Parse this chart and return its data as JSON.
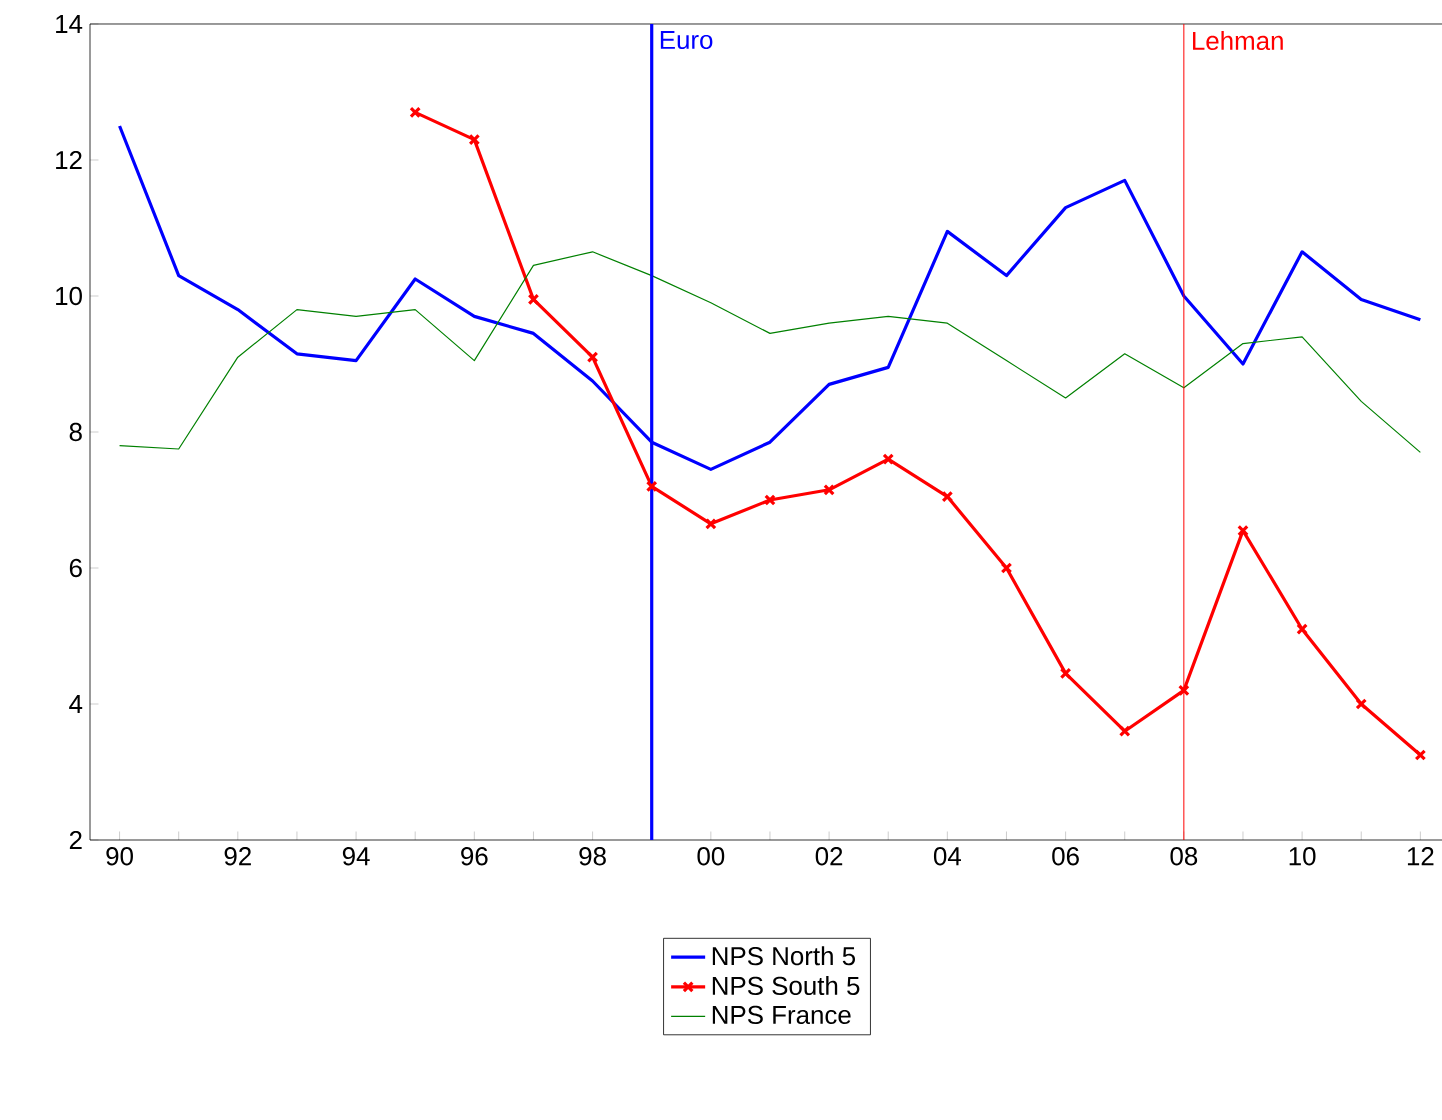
{
  "chart_data": {
    "type": "line",
    "x": [
      1990,
      1991,
      1992,
      1993,
      1994,
      1995,
      1996,
      1997,
      1998,
      1999,
      2000,
      2001,
      2002,
      2003,
      2004,
      2005,
      2006,
      2007,
      2008,
      2009,
      2010,
      2011,
      2012
    ],
    "series": [
      {
        "name": "NPS North 5",
        "color": "#0000ff",
        "marker": "none",
        "values": [
          12.5,
          10.3,
          9.8,
          9.15,
          9.05,
          10.25,
          9.7,
          9.45,
          8.75,
          7.85,
          7.45,
          7.85,
          8.7,
          8.95,
          10.95,
          10.3,
          11.3,
          11.7,
          10.0,
          9.0,
          10.65,
          9.95,
          9.65
        ]
      },
      {
        "name": "NPS South 5",
        "color": "#ff0000",
        "marker": "cross",
        "values": [
          null,
          null,
          null,
          null,
          null,
          12.7,
          12.3,
          9.95,
          9.1,
          7.2,
          6.65,
          7.0,
          7.15,
          7.6,
          7.05,
          6.0,
          4.45,
          3.6,
          4.2,
          6.55,
          5.1,
          4.0,
          3.25
        ]
      },
      {
        "name": "NPS France",
        "color": "#008000",
        "marker": "none",
        "values": [
          7.8,
          7.75,
          9.1,
          9.8,
          9.7,
          9.8,
          9.05,
          10.45,
          10.65,
          10.3,
          9.9,
          9.45,
          9.6,
          9.7,
          9.6,
          9.05,
          8.5,
          9.15,
          8.65,
          9.3,
          9.4,
          8.45,
          7.7
        ]
      }
    ],
    "xlim": [
      1989.5,
      2012.4
    ],
    "xticks": [
      {
        "value": 1990,
        "label": "90"
      },
      {
        "value": 1991,
        "label": null
      },
      {
        "value": 1992,
        "label": "92"
      },
      {
        "value": 1993,
        "label": null
      },
      {
        "value": 1994,
        "label": "94"
      },
      {
        "value": 1995,
        "label": null
      },
      {
        "value": 1996,
        "label": "96"
      },
      {
        "value": 1997,
        "label": null
      },
      {
        "value": 1998,
        "label": "98"
      },
      {
        "value": 1999,
        "label": null
      },
      {
        "value": 2000,
        "label": "00"
      },
      {
        "value": 2001,
        "label": null
      },
      {
        "value": 2002,
        "label": "02"
      },
      {
        "value": 2003,
        "label": null
      },
      {
        "value": 2004,
        "label": "04"
      },
      {
        "value": 2005,
        "label": null
      },
      {
        "value": 2006,
        "label": "06"
      },
      {
        "value": 2007,
        "label": null
      },
      {
        "value": 2008,
        "label": "08"
      },
      {
        "value": 2009,
        "label": null
      },
      {
        "value": 2010,
        "label": "10"
      },
      {
        "value": 2011,
        "label": null
      },
      {
        "value": 2012,
        "label": "12"
      }
    ],
    "ylim": [
      2,
      14
    ],
    "yticks": [
      2,
      4,
      6,
      8,
      10,
      12,
      14
    ],
    "ref_lines": [
      {
        "axis": "x",
        "value": 1999,
        "label": "Euro",
        "color": "#0000ff"
      },
      {
        "axis": "x",
        "value": 2008,
        "label": "Lehman",
        "color": "#ff0000"
      }
    ],
    "grid": false,
    "legend": "bottom"
  }
}
